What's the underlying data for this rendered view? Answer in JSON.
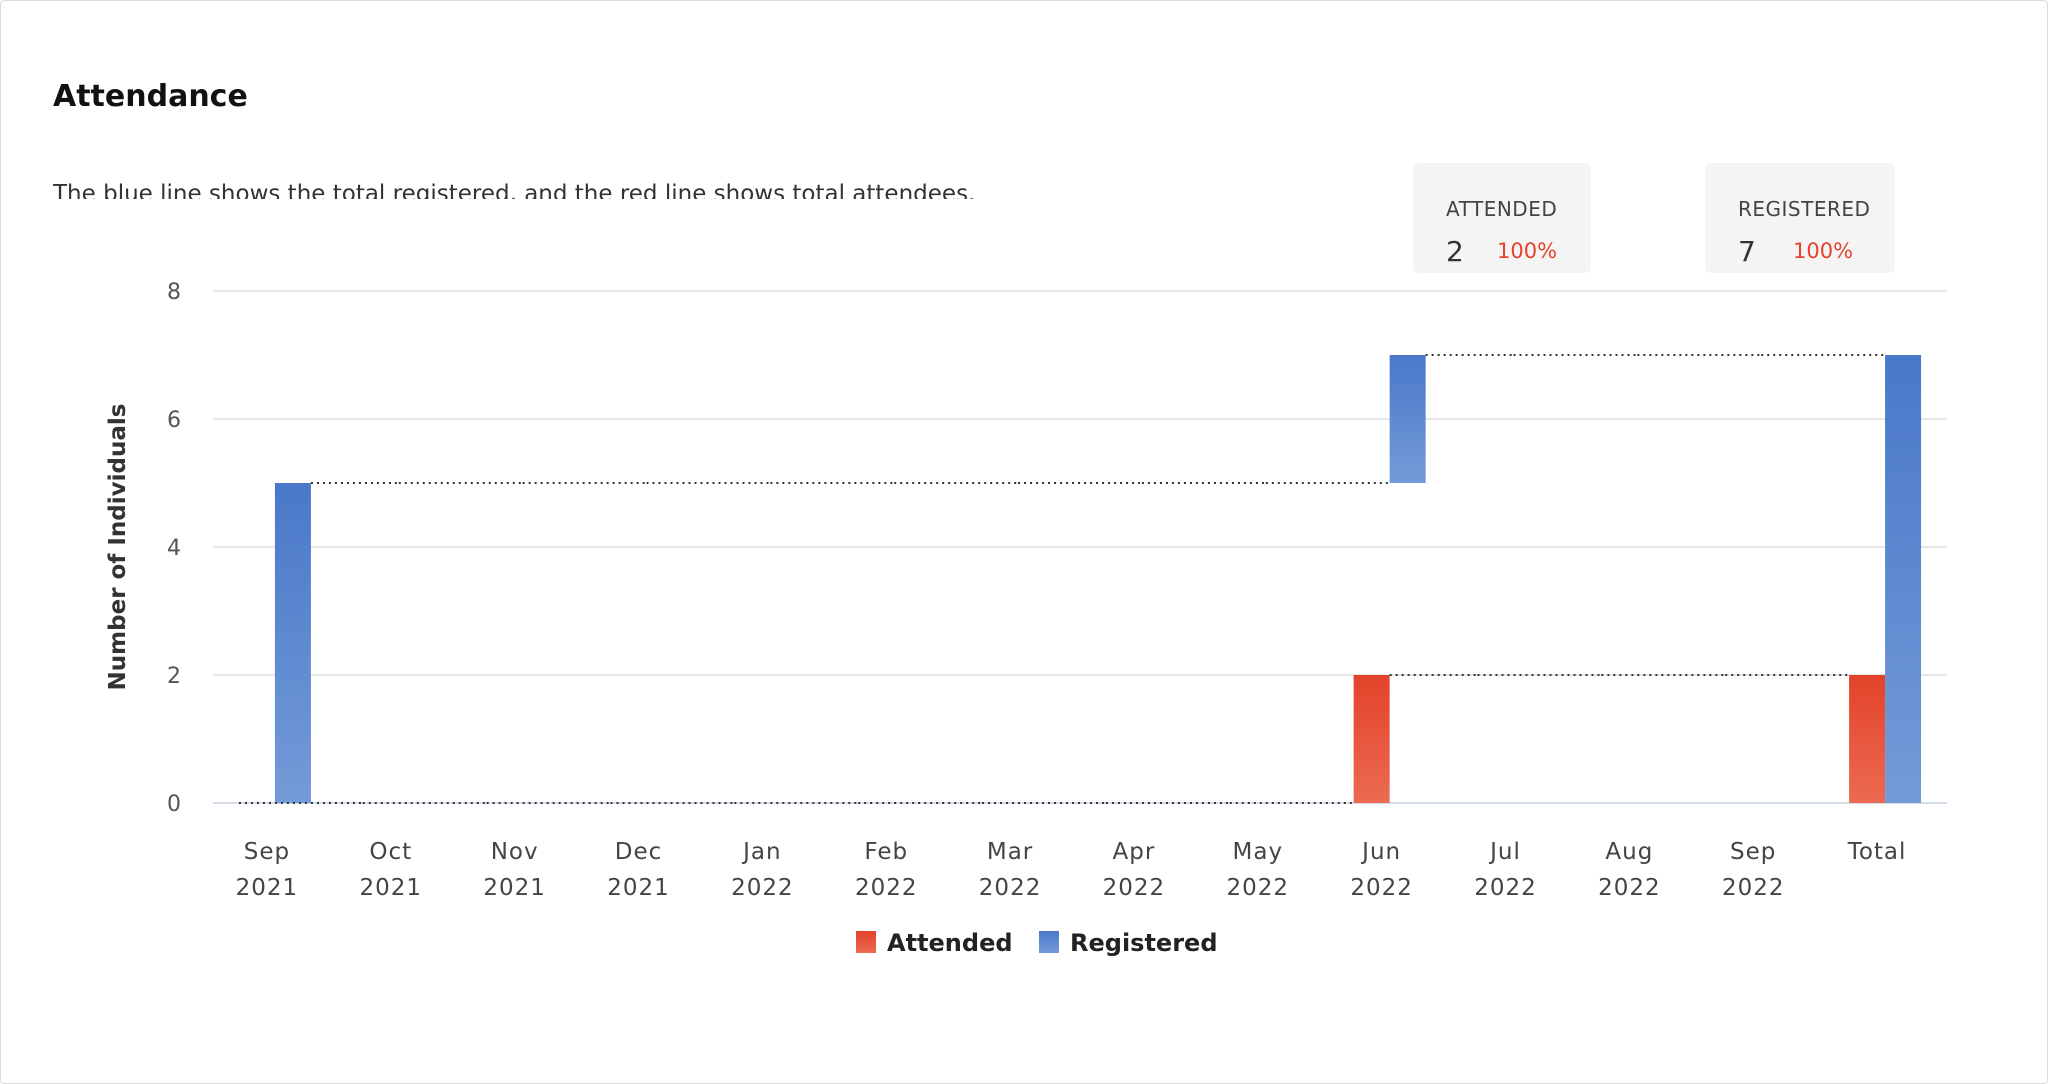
{
  "header": {
    "title": "Attendance",
    "description": "The blue line shows the total registered, and the red line shows total attendees."
  },
  "stats": [
    {
      "label": "ATTENDED",
      "value": "2",
      "percent": "100%"
    },
    {
      "label": "REGISTERED",
      "value": "7",
      "percent": "100%"
    }
  ],
  "colors": {
    "attended": "#e5432b",
    "registered": "#4a78c9",
    "grid": "#dddddd",
    "connector": "#333333"
  },
  "chart_data": {
    "type": "bar",
    "title": "",
    "ylabel": "Number of Individuals",
    "xlabel": "",
    "ylim": [
      0,
      8
    ],
    "yticks": [
      0,
      2,
      4,
      6,
      8
    ],
    "grid": true,
    "legend": "bottom-center",
    "categories": [
      [
        "Sep",
        "2021"
      ],
      [
        "Oct",
        "2021"
      ],
      [
        "Nov",
        "2021"
      ],
      [
        "Dec",
        "2021"
      ],
      [
        "Jan",
        "2022"
      ],
      [
        "Feb",
        "2022"
      ],
      [
        "Mar",
        "2022"
      ],
      [
        "Apr",
        "2022"
      ],
      [
        "May",
        "2022"
      ],
      [
        "Jun",
        "2022"
      ],
      [
        "Jul",
        "2022"
      ],
      [
        "Aug",
        "2022"
      ],
      [
        "Sep",
        "2022"
      ],
      [
        "Total",
        ""
      ]
    ],
    "waterfall": true,
    "series": [
      {
        "name": "Attended",
        "values": [
          0,
          0,
          0,
          0,
          0,
          0,
          0,
          0,
          0,
          2,
          0,
          0,
          0,
          2
        ],
        "color": "#e5432b"
      },
      {
        "name": "Registered",
        "values": [
          5,
          0,
          0,
          0,
          0,
          0,
          0,
          0,
          0,
          2,
          0,
          0,
          0,
          7
        ],
        "color": "#4a78c9"
      }
    ]
  }
}
